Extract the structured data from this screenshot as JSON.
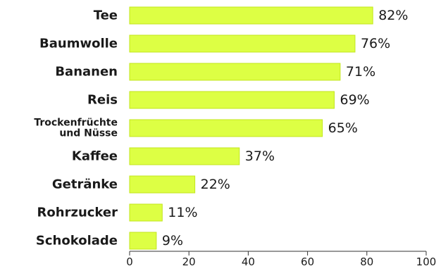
{
  "chart_data": {
    "type": "bar",
    "orientation": "horizontal",
    "title": "",
    "xlabel": "",
    "ylabel": "",
    "categories": [
      [
        "Tee"
      ],
      [
        "Baumwolle"
      ],
      [
        "Bananen"
      ],
      [
        "Reis"
      ],
      [
        "Trockenfrüchte",
        "und Nüsse"
      ],
      [
        "Kaffee"
      ],
      [
        "Getränke"
      ],
      [
        "Rohrzucker"
      ],
      [
        "Schokolade"
      ]
    ],
    "values": [
      82,
      76,
      71,
      69,
      65,
      37,
      22,
      11,
      9
    ],
    "value_labels": [
      "82%",
      "76%",
      "71%",
      "69%",
      "65%",
      "37%",
      "22%",
      "11%",
      "9%"
    ],
    "xlim": [
      0,
      100
    ],
    "xticks": [
      0,
      20,
      40,
      60,
      80,
      100
    ],
    "grid": false,
    "bar_color": "#ddff44",
    "bar_border_color": "#c2e61c"
  }
}
